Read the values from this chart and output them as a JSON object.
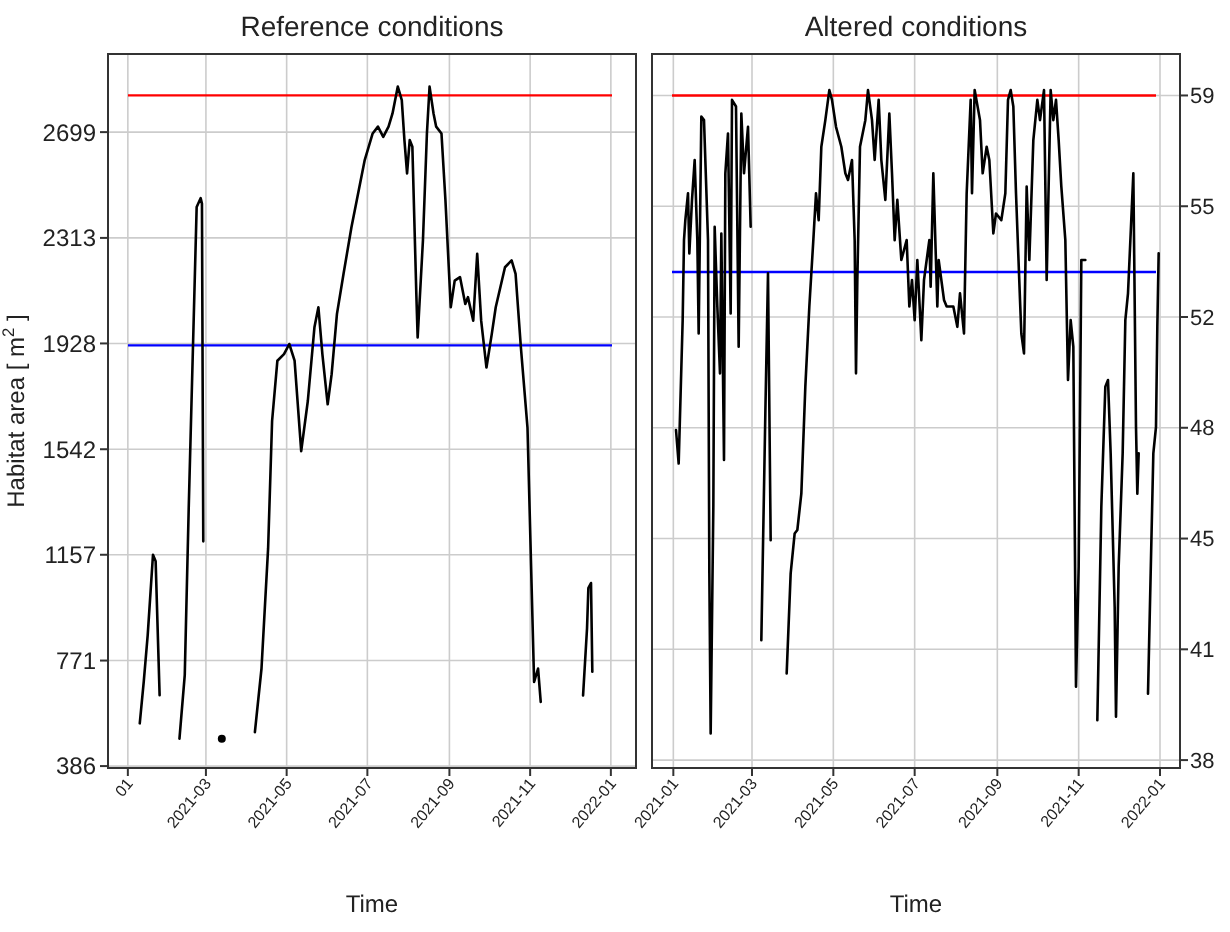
{
  "chart_data": [
    {
      "type": "line",
      "title": "Reference conditions",
      "xlabel": "Time",
      "ylabel": "Habitat area [ m$^{2}$ ]",
      "grid": true,
      "xlim": [
        "2020-12-17",
        "2022-01-20"
      ],
      "xticks": [
        {
          "value": "2021-01",
          "label": "01"
        },
        "2021-03",
        "2021-05",
        "2021-07",
        "2021-09",
        "2021-11",
        "2022-01"
      ],
      "ylim": [
        379,
        2984
      ],
      "yticks": [
        386,
        771,
        1157,
        1542,
        1928,
        2313,
        2699
      ],
      "ref_lines": [
        {
          "axis": "y",
          "value": 2833,
          "color": "#ff0000"
        },
        {
          "axis": "y",
          "value": 1921,
          "color": "#0000ff"
        }
      ],
      "series": [
        {
          "color": "#000000",
          "x": [
            "2021-01-10",
            "2021-01-13",
            "2021-01-16",
            "2021-01-20",
            "2021-01-22",
            "2021-01-25",
            "2021-02-01",
            "2021-02-09",
            "2021-02-13",
            "2021-02-16",
            "2021-02-20",
            "2021-02-22",
            "2021-02-25",
            "2021-02-26",
            "2021-02-27",
            "2021-03-05",
            "2021-03-13",
            "2021-03-20",
            "2021-04-07",
            "2021-04-12",
            "2021-04-17",
            "2021-04-20",
            "2021-04-24",
            "2021-04-29",
            "2021-05-03",
            "2021-05-07",
            "2021-05-12",
            "2021-05-17",
            "2021-05-22",
            "2021-05-25",
            "2021-05-28",
            "2021-06-01",
            "2021-06-04",
            "2021-06-08",
            "2021-06-13",
            "2021-06-19",
            "2021-06-23",
            "2021-06-29",
            "2021-07-05",
            "2021-07-09",
            "2021-07-13",
            "2021-07-17",
            "2021-07-20",
            "2021-07-24",
            "2021-07-27",
            "2021-07-29",
            "2021-07-31",
            "2021-08-02",
            "2021-08-04",
            "2021-08-07",
            "2021-08-08",
            "2021-08-12",
            "2021-08-15",
            "2021-08-17",
            "2021-08-20",
            "2021-08-22",
            "2021-08-26",
            "2021-08-29",
            "2021-09-02",
            "2021-09-05",
            "2021-09-09",
            "2021-09-13",
            "2021-09-15",
            "2021-09-19",
            "2021-09-22",
            "2021-09-25",
            "2021-09-29",
            "2021-10-03",
            "2021-10-06",
            "2021-10-13",
            "2021-10-18",
            "2021-10-21",
            "2021-10-25",
            "2021-10-30",
            "2021-11-04",
            "2021-11-07",
            "2021-11-09",
            "2021-11-25",
            "2021-12-11",
            "2021-12-14",
            "2021-12-15",
            "2021-12-17",
            "2021-12-18"
          ],
          "values": [
            542,
            693,
            864,
            1157,
            1133,
            645,
            null,
            486,
            718,
            1328,
            2060,
            2426,
            2458,
            2438,
            1206,
            null,
            486,
            null,
            510,
            742,
            1181,
            1645,
            1865,
            1889,
            1926,
            1865,
            1535,
            1718,
            1987,
            2060,
            1889,
            1706,
            1816,
            2035,
            2182,
            2353,
            2450,
            2597,
            2694,
            2719,
            2682,
            2719,
            2767,
            2865,
            2816,
            2670,
            2548,
            2670,
            2646,
            2108,
            1950,
            2304,
            2694,
            2865,
            2767,
            2719,
            2694,
            2450,
            2060,
            2157,
            2170,
            2072,
            2097,
            2011,
            2255,
            2011,
            1840,
            1962,
            2060,
            2206,
            2231,
            2182,
            1914,
            1621,
            693,
            742,
            620,
            null,
            644,
            889,
            1035,
            1054,
            730
          ]
        }
      ]
    },
    {
      "type": "line",
      "title": "Altered conditions",
      "xlabel": "Time",
      "grid": true,
      "xlim": [
        "2020-12-16",
        "2022-01-16"
      ],
      "xticks": [
        "2021-01",
        "2021-03",
        "2021-05",
        "2021-07",
        "2021-09",
        "2021-11",
        "2022-01"
      ],
      "y2lim": [
        37.75,
        60.31
      ],
      "y2ticks": [
        {
          "value": 38,
          "label": "38"
        },
        {
          "value": 41.5,
          "label": "41"
        },
        {
          "value": 45,
          "label": "45"
        },
        {
          "value": 48.5,
          "label": "48"
        },
        {
          "value": 52,
          "label": "52"
        },
        {
          "value": 55.5,
          "label": "55"
        },
        {
          "value": 59,
          "label": "59"
        }
      ],
      "ref_lines": [
        {
          "axis": "y2",
          "value": 59,
          "color": "#ff0000"
        },
        {
          "axis": "y2",
          "value": 53.42,
          "color": "#0000ff"
        }
      ],
      "series": [
        {
          "color": "#000000",
          "axis": "y2",
          "x": [
            "2021-01-03",
            "2021-01-05",
            "2021-01-08",
            "2021-01-09",
            "2021-01-10",
            "2021-01-12",
            "2021-01-13",
            "2021-01-15",
            "2021-01-17",
            "2021-01-19",
            "2021-01-20",
            "2021-01-22",
            "2021-01-24",
            "2021-01-27",
            "2021-01-28",
            "2021-01-29",
            "2021-01-31",
            "2021-02-01",
            "2021-02-03",
            "2021-02-05",
            "2021-02-06",
            "2021-02-08",
            "2021-02-09",
            "2021-02-11",
            "2021-02-13",
            "2021-02-14",
            "2021-02-17",
            "2021-02-19",
            "2021-02-21",
            "2021-02-23",
            "2021-02-26",
            "2021-02-28",
            "2021-03-03",
            "2021-03-08",
            "2021-03-11",
            "2021-03-13",
            "2021-03-15",
            "2021-03-20",
            "2021-03-27",
            "2021-03-30",
            "2021-04-02",
            "2021-04-04",
            "2021-04-07",
            "2021-04-10",
            "2021-04-13",
            "2021-04-16",
            "2021-04-18",
            "2021-04-20",
            "2021-04-22",
            "2021-04-25",
            "2021-04-28",
            "2021-04-30",
            "2021-05-03",
            "2021-05-07",
            "2021-05-10",
            "2021-05-12",
            "2021-05-15",
            "2021-05-17",
            "2021-05-18",
            "2021-05-19",
            "2021-05-21",
            "2021-05-25",
            "2021-05-27",
            "2021-05-30",
            "2021-06-01",
            "2021-06-04",
            "2021-06-06",
            "2021-06-09",
            "2021-06-12",
            "2021-06-14",
            "2021-06-16",
            "2021-06-18",
            "2021-06-21",
            "2021-06-25",
            "2021-06-27",
            "2021-06-29",
            "2021-07-01",
            "2021-07-03",
            "2021-07-06",
            "2021-07-08",
            "2021-07-12",
            "2021-07-13",
            "2021-07-15",
            "2021-07-18",
            "2021-07-19",
            "2021-07-23",
            "2021-07-25",
            "2021-07-30",
            "2021-08-02",
            "2021-08-04",
            "2021-08-07",
            "2021-08-09",
            "2021-08-12",
            "2021-08-13",
            "2021-08-15",
            "2021-08-19",
            "2021-08-21",
            "2021-08-24",
            "2021-08-26",
            "2021-08-29",
            "2021-08-31",
            "2021-09-04",
            "2021-09-07",
            "2021-09-09",
            "2021-09-11",
            "2021-09-13",
            "2021-09-15",
            "2021-09-18",
            "2021-09-19",
            "2021-09-21",
            "2021-09-23",
            "2021-09-25",
            "2021-09-28",
            "2021-10-01",
            "2021-10-03",
            "2021-10-06",
            "2021-10-08",
            "2021-10-11",
            "2021-10-13",
            "2021-10-15",
            "2021-10-17",
            "2021-10-19",
            "2021-10-22",
            "2021-10-24",
            "2021-10-26",
            "2021-10-28",
            "2021-10-30",
            "2021-11-01",
            "2021-11-03",
            "2021-11-06",
            "2021-11-10",
            "2021-11-15",
            "2021-11-18",
            "2021-11-21",
            "2021-11-23",
            "2021-11-25",
            "2021-11-28",
            "2021-11-29",
            "2021-12-01",
            "2021-12-04",
            "2021-12-06",
            "2021-12-08",
            "2021-12-10",
            "2021-12-12",
            "2021-12-14",
            "2021-12-15",
            "2021-12-16",
            "2021-12-19",
            "2021-12-23",
            "2021-12-25",
            "2021-12-27",
            "2021-12-29",
            "2021-12-30",
            "2021-12-31"
          ],
          "values": [
            48.43,
            47.37,
            51.9,
            54.43,
            55.06,
            55.91,
            54.01,
            55.7,
            56.96,
            54.43,
            51.48,
            58.33,
            58.22,
            54.43,
            43.9,
            38.84,
            46.01,
            54.85,
            52.33,
            50.22,
            54.64,
            47.48,
            56.54,
            57.8,
            52.11,
            58.86,
            58.65,
            51.06,
            58.43,
            56.54,
            58.01,
            54.85,
            null,
            41.79,
            48.95,
            53.38,
            44.95,
            null,
            40.74,
            43.9,
            45.16,
            45.27,
            46.42,
            49.8,
            52.33,
            54.43,
            55.91,
            55.06,
            57.38,
            58.22,
            59.17,
            58.86,
            58.01,
            57.38,
            56.54,
            56.33,
            56.96,
            54.43,
            50.22,
            53.17,
            57.38,
            58.22,
            59.17,
            58.22,
            56.96,
            58.86,
            56.96,
            55.7,
            58.43,
            56.54,
            54.43,
            55.7,
            53.8,
            54.43,
            52.33,
            53.17,
            51.9,
            53.8,
            51.27,
            53.17,
            54.43,
            52.96,
            56.54,
            52.33,
            53.8,
            52.54,
            52.33,
            52.33,
            51.69,
            52.75,
            51.48,
            55.91,
            58.86,
            55.91,
            59.17,
            58.22,
            56.54,
            57.38,
            56.96,
            54.64,
            55.27,
            55.06,
            55.91,
            58.86,
            59.17,
            58.65,
            55.91,
            52.54,
            51.48,
            50.85,
            56.12,
            53.8,
            57.59,
            58.86,
            58.22,
            59.17,
            53.17,
            59.17,
            58.22,
            58.86,
            57.59,
            56.12,
            54.43,
            50.01,
            51.9,
            51.06,
            40.32,
            44.11,
            53.8,
            53.8,
            null,
            39.26,
            46.01,
            49.8,
            50.01,
            47.69,
            42.85,
            39.37,
            44.11,
            47.69,
            51.9,
            52.75,
            54.64,
            56.54,
            48.53,
            46.42,
            47.69,
            null,
            40.1,
            43.9,
            47.69,
            48.53,
            51.69,
            54.01
          ]
        }
      ]
    }
  ]
}
